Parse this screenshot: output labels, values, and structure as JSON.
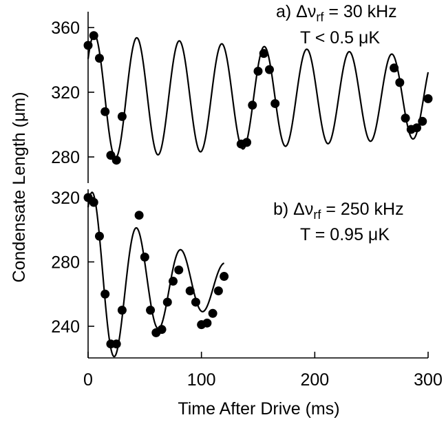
{
  "chart_data": [
    {
      "type": "scatter",
      "panel_label": "a)",
      "annotation_lines": [
        "a) Δν<sub>rf</sub> = 30 kHz",
        "T < 0.5 μK"
      ],
      "annotation_parts": {
        "prefix": "a) Δν",
        "sub": "rf",
        "suffix": " = 30 kHz",
        "line2": "T < 0.5 μK"
      },
      "ylim": [
        270,
        368
      ],
      "yticks": [
        280,
        320,
        360
      ],
      "xlim": [
        0,
        300
      ],
      "series": [
        {
          "kind": "points",
          "x": [
            0,
            5,
            10,
            15,
            20,
            25,
            30,
            135,
            140,
            145,
            150,
            155,
            160,
            165,
            270,
            275,
            280,
            285,
            290,
            295,
            300
          ],
          "y": [
            349,
            355,
            341,
            308,
            281,
            278,
            305,
            288,
            289,
            312,
            333,
            344,
            334,
            313,
            335,
            326,
            304,
            297,
            298,
            302,
            316
          ]
        },
        {
          "kind": "fit",
          "model": "damped_sine",
          "offset": 317,
          "amplitude": 39,
          "decay_ms": 700,
          "period_ms": 37.5,
          "phase_ms": 5.5,
          "x_range": [
            0,
            300
          ]
        }
      ]
    },
    {
      "type": "scatter",
      "panel_label": "b)",
      "annotation_parts": {
        "prefix": "b) Δν",
        "sub": "rf",
        "suffix": " = 250 kHz",
        "line2": "T = 0.95 μK"
      },
      "ylim": [
        222,
        330
      ],
      "yticks": [
        240,
        280,
        320
      ],
      "xlim": [
        0,
        300
      ],
      "xticks": [
        0,
        100,
        200,
        300
      ],
      "xlabel": "Time After Drive (ms)",
      "series": [
        {
          "kind": "points",
          "x": [
            0,
            5,
            10,
            15,
            20,
            25,
            30,
            45,
            50,
            55,
            60,
            65,
            70,
            75,
            80,
            90,
            95,
            100,
            105,
            110,
            115,
            120
          ],
          "y": [
            320,
            317,
            296,
            260,
            229,
            229,
            250,
            309,
            283,
            250,
            236,
            238,
            255,
            268,
            275,
            262,
            255,
            241,
            242,
            248,
            262,
            271
          ]
        },
        {
          "kind": "fit",
          "model": "damped_sine",
          "offset": 266,
          "amplitude": 60,
          "decay_ms": 80,
          "period_ms": 39,
          "phase_ms": 4,
          "x_range": [
            0,
            120
          ]
        }
      ]
    }
  ],
  "shared": {
    "ylabel": "Condensate Length (μm)"
  },
  "text": {
    "ylabel": "Condensate Length (μm)",
    "xlabel": "Time After Drive (ms)",
    "xticks": [
      "0",
      "100",
      "200",
      "300"
    ],
    "a_yticks": [
      "280",
      "320",
      "360"
    ],
    "b_yticks": [
      "240",
      "280",
      "320"
    ],
    "a_line1_prefix": "a) Δν",
    "a_line1_sub": "rf",
    "a_line1_suffix": " = 30 kHz",
    "a_line2": "T < 0.5 μK",
    "b_line1_prefix": "b) Δν",
    "b_line1_sub": "rf",
    "b_line1_suffix": " = 250 kHz",
    "b_line2": "T = 0.95 μK"
  }
}
